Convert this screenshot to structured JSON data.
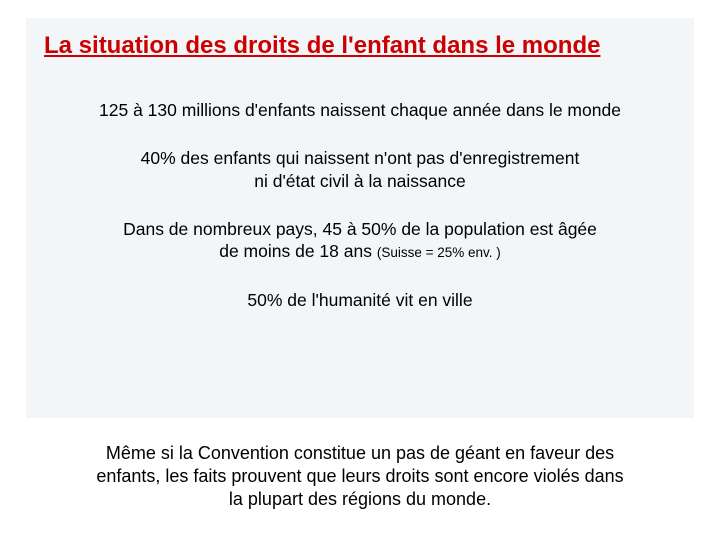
{
  "title": "La situation des droits de l'enfant dans le monde",
  "facts": {
    "f1": "125 à 130 millions d'enfants naissent chaque année dans le monde",
    "f2_l1": "40% des enfants qui naissent n'ont pas d'enregistrement",
    "f2_l2": "ni d'état civil à la naissance",
    "f3_l1": "Dans de nombreux pays, 45 à 50% de la population est âgée",
    "f3_l2a": "de moins de 18 ans ",
    "f3_l2b": "(Suisse = 25% env. )",
    "f4": "50% de l'humanité vit en ville"
  },
  "conclusion_l1": "Même si la Convention constitue un pas de géant en faveur des",
  "conclusion_l2": "enfants, les faits prouvent que leurs droits sont encore violés dans",
  "conclusion_l3": "la plupart des régions du monde.",
  "colors": {
    "title": "#cc0000",
    "text": "#000000",
    "box_bg": "#f3f6f8",
    "page_bg": "#ffffff"
  }
}
